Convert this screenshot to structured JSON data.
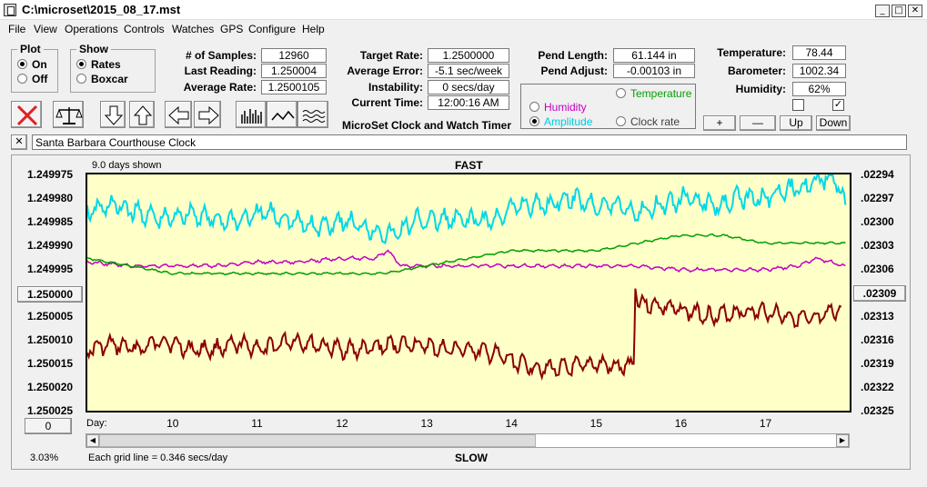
{
  "window": {
    "title": "C:\\microset\\2015_08_17.mst",
    "minimize": "_",
    "maximize": "□",
    "close": "✕"
  },
  "menu": [
    "File",
    "View",
    "Operations",
    "Controls",
    "Watches",
    "GPS",
    "Configure",
    "Help"
  ],
  "plot_group": {
    "title": "Plot",
    "options": [
      "On",
      "Off"
    ],
    "selected": "On"
  },
  "show_group": {
    "title": "Show",
    "options": [
      "Rates",
      "Boxcar"
    ],
    "selected": "Rates"
  },
  "fields": {
    "samples": {
      "label": "# of Samples:",
      "value": "12960"
    },
    "last_reading": {
      "label": "Last Reading:",
      "value": "1.250004"
    },
    "average_rate": {
      "label": "Average Rate:",
      "value": "1.2500105"
    },
    "target_rate": {
      "label": "Target Rate:",
      "value": "1.2500000"
    },
    "average_error": {
      "label": "Average Error:",
      "value": "-5.1 sec/week"
    },
    "instability": {
      "label": "Instability:",
      "value": "0 secs/day"
    },
    "current_time": {
      "label": "Current Time:",
      "value": "12:00:16 AM"
    },
    "pend_length": {
      "label": "Pend Length:",
      "value": "61.144 in"
    },
    "pend_adjust": {
      "label": "Pend Adjust:",
      "value": "-0.00103 in"
    },
    "temperature": {
      "label": "Temperature:",
      "value": "78.44"
    },
    "barometer": {
      "label": "Barometer:",
      "value": "1002.34"
    },
    "humidity": {
      "label": "Humidity:",
      "value": "62%"
    }
  },
  "app_title": "MicroSet Clock and Watch Timer",
  "aux_selector": {
    "options": [
      "Temperature",
      "Humidity",
      "Amplitude",
      "Clock rate"
    ],
    "selected": "Amplitude",
    "colors": {
      "Temperature": "#00a000",
      "Humidity": "#c000c0",
      "Amplitude": "#00d0e0",
      "Clock rate": "#404040"
    }
  },
  "checkboxes": [
    false,
    true
  ],
  "scale_buttons": [
    "+",
    "—",
    "Up",
    "Down"
  ],
  "toolbar_icons": [
    "cancel-icon",
    "balance-scale-icon",
    "arrow-down-icon",
    "arrow-up-icon",
    "arrow-left-icon",
    "arrow-right-icon",
    "bar-graph-icon",
    "line-graph-icon",
    "wave-graph-icon"
  ],
  "clock_name": {
    "close": "✕",
    "value": "Santa Barbara Courthouse Clock"
  },
  "chart_top_left": "9.0 days shown",
  "chart_top_label": "FAST",
  "chart_bottom_label": "SLOW",
  "zoom_percent": "3.03%",
  "grid_text": "Each grid line = 0.346 secs/day",
  "left_ref_button": "1.250000",
  "right_ref_button": ".02309",
  "left_bottom_button": "0",
  "chart_data": {
    "type": "line",
    "xlabel": "Day:",
    "x_ticks": [
      10,
      11,
      12,
      13,
      14,
      15,
      16,
      17
    ],
    "xlim": [
      9.0,
      18.0
    ],
    "y_left_ticks": [
      "1.249975",
      "1.249980",
      "1.249985",
      "1.249990",
      "1.249995",
      "",
      "1.250005",
      "1.250010",
      "1.250015",
      "1.250020",
      "1.250025"
    ],
    "y_right_ticks": [
      ".02294",
      ".02297",
      ".02300",
      ".02303",
      ".02306",
      "",
      ".02313",
      ".02316",
      ".02319",
      ".02322",
      ".02325"
    ],
    "ylim_left": [
      1.249975,
      1.250025
    ],
    "ylim_right": [
      0.02294,
      0.02325
    ],
    "series": [
      {
        "color": "#8b0000",
        "axis": "left",
        "x": [
          9.0,
          9.3,
          9.6,
          9.9,
          10.2,
          10.5,
          10.8,
          11.1,
          11.4,
          11.7,
          12.0,
          12.3,
          12.6,
          12.9,
          13.2,
          13.5,
          13.8,
          14.1,
          14.4,
          14.7,
          15.0,
          15.3,
          15.45,
          15.47,
          15.5,
          15.8,
          16.1,
          16.4,
          16.7,
          17.0,
          17.3,
          17.6,
          17.9
        ],
        "y": [
          1.250012,
          1.250011,
          1.250012,
          1.25001,
          1.250012,
          1.250012,
          1.250011,
          1.250012,
          1.25001,
          1.250011,
          1.250012,
          1.250012,
          1.250011,
          1.250011,
          1.250012,
          1.250012,
          1.250013,
          1.250015,
          1.250016,
          1.250016,
          1.250015,
          1.250016,
          1.250015,
          1.249998,
          1.250002,
          1.250003,
          1.250004,
          1.250005,
          1.250004,
          1.250004,
          1.250005,
          1.250006,
          1.250003
        ]
      },
      {
        "color": "#00d8e8",
        "axis": "right",
        "x": [
          9.0,
          9.3,
          9.6,
          9.9,
          10.2,
          10.5,
          10.8,
          11.1,
          11.4,
          11.7,
          12.0,
          12.3,
          12.6,
          12.9,
          13.2,
          13.5,
          13.8,
          14.1,
          14.4,
          14.7,
          15.0,
          15.3,
          15.45,
          15.5,
          15.8,
          16.1,
          16.4,
          16.7,
          17.0,
          17.3,
          17.6,
          17.8,
          17.95
        ],
        "y": [
          0.02299,
          0.02298,
          0.02299,
          0.023,
          0.02299,
          0.023,
          0.023,
          0.02299,
          0.023,
          0.02301,
          0.023,
          0.02301,
          0.02302,
          0.023,
          0.023,
          0.023,
          0.023,
          0.02298,
          0.02298,
          0.02297,
          0.02298,
          0.02298,
          0.02299,
          0.02299,
          0.02298,
          0.02297,
          0.02298,
          0.02297,
          0.02297,
          0.02296,
          0.02295,
          0.02294,
          0.02298
        ]
      },
      {
        "color": "#c000c0",
        "axis": "right",
        "x": [
          9.0,
          9.5,
          10.0,
          10.5,
          11.0,
          11.5,
          12.0,
          12.4,
          12.55,
          12.7,
          13.0,
          13.5,
          14.0,
          14.5,
          15.0,
          15.5,
          16.0,
          16.5,
          17.0,
          17.4,
          17.6,
          17.95
        ],
        "y": [
          0.023055,
          0.02306,
          0.02306,
          0.02306,
          0.023055,
          0.023055,
          0.02305,
          0.02305,
          0.02304,
          0.02306,
          0.02306,
          0.02306,
          0.02306,
          0.02306,
          0.02306,
          0.02306,
          0.023065,
          0.023065,
          0.023065,
          0.02306,
          0.02305,
          0.02306
        ]
      },
      {
        "color": "#00a000",
        "axis": "right",
        "x": [
          9.0,
          9.5,
          10.0,
          10.5,
          11.0,
          11.5,
          12.0,
          12.5,
          13.0,
          13.5,
          14.0,
          14.5,
          15.0,
          15.5,
          16.0,
          16.5,
          17.0,
          17.5,
          17.95
        ],
        "y": [
          0.02305,
          0.02306,
          0.02307,
          0.02307,
          0.02307,
          0.02307,
          0.02307,
          0.02307,
          0.02306,
          0.02305,
          0.02304,
          0.02304,
          0.02304,
          0.02303,
          0.02302,
          0.02302,
          0.02303,
          0.02303,
          0.02303
        ]
      }
    ]
  }
}
